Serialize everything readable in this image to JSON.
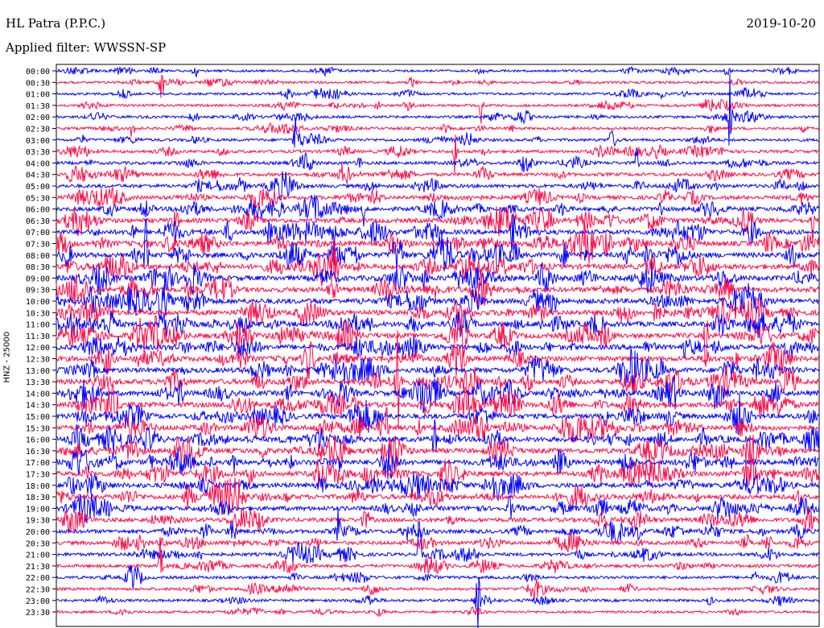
{
  "header": {
    "station": "HL Patra (P.P.C.)",
    "filter": "Applied filter: WWSSN-SP",
    "date": "2019-10-20",
    "channel": "HNZ - 25000"
  },
  "colors": {
    "even": "#0000ff",
    "odd": "#ff0a46",
    "background": "#ffffff"
  },
  "chart_data": {
    "type": "line",
    "title": "HL Patra (P.P.C.)",
    "subtitle": "Applied filter: WWSSN-SP",
    "ylabel": "HNZ - 25000",
    "categories": [
      "00:00",
      "00:30",
      "01:00",
      "01:30",
      "02:00",
      "02:30",
      "03:00",
      "03:30",
      "04:00",
      "04:30",
      "05:00",
      "05:30",
      "06:00",
      "06:30",
      "07:00",
      "07:30",
      "08:00",
      "08:30",
      "09:00",
      "09:30",
      "10:00",
      "10:30",
      "11:00",
      "11:30",
      "12:00",
      "12:30",
      "13:00",
      "13:30",
      "14:00",
      "14:30",
      "15:00",
      "15:30",
      "16:00",
      "16:30",
      "17:00",
      "17:30",
      "18:00",
      "18:30",
      "19:00",
      "19:30",
      "20:00",
      "20:30",
      "21:00",
      "21:30",
      "22:00",
      "22:30",
      "23:00",
      "23:30"
    ],
    "activity": [
      0.25,
      0.3,
      0.3,
      0.35,
      0.35,
      0.35,
      0.4,
      0.45,
      0.5,
      0.55,
      0.6,
      0.7,
      0.75,
      0.85,
      0.9,
      1.0,
      1.0,
      1.0,
      1.0,
      1.0,
      1.0,
      1.0,
      1.0,
      1.0,
      1.0,
      1.0,
      1.0,
      1.0,
      1.0,
      1.0,
      1.0,
      1.0,
      1.0,
      1.0,
      1.0,
      1.0,
      0.95,
      0.9,
      0.85,
      0.75,
      0.7,
      0.65,
      0.55,
      0.5,
      0.45,
      0.4,
      0.35,
      0.3
    ]
  }
}
